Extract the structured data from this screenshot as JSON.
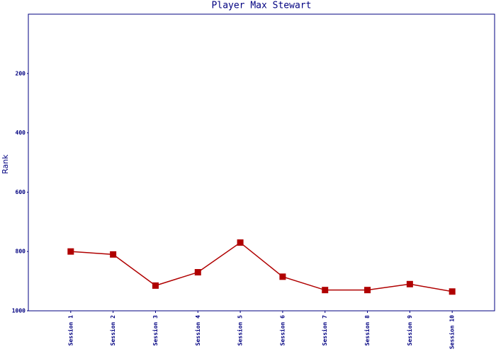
{
  "chart_data": {
    "type": "line",
    "title": "Player Max Stewart",
    "y_label": "Rank",
    "categories": [
      "Session 1",
      "Session 2",
      "Session 3",
      "Session 4",
      "Session 5",
      "Session 6",
      "Session 7",
      "Session 8",
      "Session 9",
      "Session 10"
    ],
    "series": [
      {
        "name": "Rank",
        "color": "#b00000",
        "values": [
          800,
          810,
          915,
          870,
          770,
          885,
          930,
          930,
          910,
          935
        ]
      }
    ],
    "ylim": [
      1000,
      0
    ],
    "yticks": [
      200,
      400,
      600,
      800,
      1000
    ],
    "grid": false,
    "legend": false
  }
}
